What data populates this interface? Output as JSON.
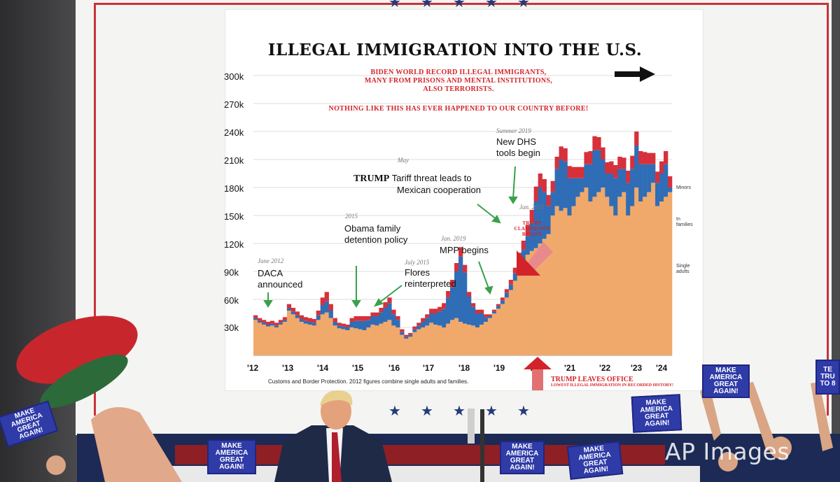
{
  "chart_data": {
    "type": "bar",
    "title": "ILLEGAL IMMIGRATION INTO THE U.S.",
    "xlabel": "",
    "ylabel": "",
    "ylim": [
      0,
      300000
    ],
    "y_ticks": [
      "30k",
      "60k",
      "90k",
      "120k",
      "150k",
      "180k",
      "210k",
      "240k",
      "270k",
      "300k"
    ],
    "x_ticks": [
      "'12",
      "'13",
      "'14",
      "'15",
      "'16",
      "'17",
      "'18",
      "'19",
      "'20",
      "'21",
      "'22",
      "'23",
      "'24"
    ],
    "grid": true,
    "stacked": true,
    "series_colors": {
      "single_adults": "#f0a96b",
      "in_families": "#2f6db6",
      "minors": "#d8303a"
    },
    "legend": [
      "Minors",
      "In families",
      "Single adults"
    ],
    "legend_placement": "right",
    "series": [
      {
        "name": "Single adults",
        "values": [
          38000,
          35000,
          33000,
          31000,
          32000,
          30000,
          33000,
          36000,
          48000,
          44000,
          40000,
          36000,
          34000,
          33000,
          32000,
          38000,
          44000,
          46000,
          40000,
          32000,
          29000,
          28000,
          27000,
          30000,
          29000,
          28000,
          27000,
          30000,
          33000,
          32000,
          34000,
          36000,
          38000,
          32000,
          30000,
          22000,
          18000,
          20000,
          25000,
          28000,
          30000,
          32000,
          35000,
          33000,
          32000,
          30000,
          34000,
          38000,
          40000,
          36000,
          34000,
          33000,
          32000,
          30000,
          33000,
          36000,
          40000,
          45000,
          50000,
          55000,
          62000,
          70000,
          80000,
          90000,
          98000,
          108000,
          112000,
          115000,
          120000,
          125000,
          130000,
          150000,
          160000,
          155000,
          158000,
          150000,
          160000,
          170000,
          175000,
          180000,
          165000,
          170000,
          175000,
          180000,
          170000,
          160000,
          150000,
          170000,
          175000,
          150000,
          160000,
          180000,
          165000,
          170000,
          175000,
          185000,
          160000,
          165000,
          170000,
          175000
        ]
      },
      {
        "name": "In families",
        "values": [
          2000,
          2000,
          2000,
          2000,
          2000,
          2000,
          2000,
          2000,
          3000,
          3000,
          3000,
          3000,
          3000,
          3000,
          3000,
          5000,
          10000,
          12000,
          8000,
          4000,
          3000,
          3000,
          3000,
          6000,
          8000,
          9000,
          10000,
          8000,
          9000,
          10000,
          12000,
          15000,
          18000,
          12000,
          8000,
          3000,
          2000,
          2000,
          3000,
          4000,
          6000,
          8000,
          10000,
          12000,
          15000,
          20000,
          28000,
          35000,
          50000,
          70000,
          55000,
          30000,
          20000,
          15000,
          12000,
          5000,
          2000,
          2000,
          3000,
          4000,
          5000,
          6000,
          8000,
          12000,
          15000,
          20000,
          30000,
          50000,
          60000,
          50000,
          30000,
          25000,
          40000,
          55000,
          50000,
          40000,
          30000,
          20000,
          15000,
          25000,
          40000,
          50000,
          45000,
          30000,
          25000,
          35000,
          40000,
          30000,
          25000,
          35000,
          40000,
          45000,
          40000,
          35000,
          30000,
          20000,
          25000,
          30000,
          35000,
          5000
        ]
      },
      {
        "name": "Minors",
        "values": [
          3000,
          3000,
          3000,
          3000,
          3000,
          3000,
          3000,
          3000,
          4000,
          4000,
          4000,
          4000,
          4000,
          4000,
          4000,
          5000,
          8000,
          10000,
          7000,
          4000,
          3000,
          3000,
          3000,
          4000,
          5000,
          5000,
          5000,
          4000,
          4000,
          4000,
          5000,
          6000,
          6000,
          5000,
          4000,
          3000,
          2000,
          2000,
          3000,
          3000,
          4000,
          4000,
          5000,
          5000,
          5000,
          6000,
          7000,
          8000,
          9000,
          10000,
          8000,
          5000,
          4000,
          4000,
          4000,
          3000,
          2000,
          2000,
          2000,
          3000,
          4000,
          5000,
          6000,
          8000,
          10000,
          12000,
          14000,
          16000,
          15000,
          14000,
          12000,
          12000,
          13000,
          14000,
          14000,
          13000,
          12000,
          12000,
          12000,
          13000,
          14000,
          15000,
          14000,
          13000,
          12000,
          13000,
          14000,
          13000,
          12000,
          13000,
          14000,
          15000,
          14000,
          13000,
          12000,
          12000,
          12000,
          13000,
          14000,
          12000
        ]
      }
    ],
    "annotations": {
      "subtitle_lines": [
        "BIDEN WORLD RECORD ILLEGAL IMMIGRANTS,",
        "MANY FROM PRISONS AND MENTAL INSTITUTIONS,",
        "ALSO TERRORISTS."
      ],
      "subtitle2": "NOTHING LIKE THIS HAS EVER HAPPENED TO OUR COUNTRY BEFORE!",
      "daca_date": "June 2012",
      "daca_lines": [
        "DACA",
        "announced"
      ],
      "obama_date": "2015",
      "obama_lines": [
        "Obama family",
        "detention policy"
      ],
      "flores_date": "July 2015",
      "flores_lines": [
        "Flores",
        "reinterpreted"
      ],
      "tariff_date": "May",
      "tariff_bold": "TRUMP",
      "tariff_rest": "Tariff threat leads to",
      "tariff_line2": "Mexican cooperation",
      "dhs_date": "Summer 2019",
      "dhs_lines": [
        "New DHS",
        "tools begin"
      ],
      "mpp_date": "Jan. 2019",
      "mpp_text": "MPP begins",
      "jan2021": "Jan. 2021",
      "clampdown_lines": [
        "TRUMP",
        "CLAMPDOWN",
        "BEGINS"
      ],
      "leaves_main": "TRUMP LEAVES OFFICE",
      "leaves_sub": "LOWEST ILLEGAL IMMIGRATION IN RECORDED HISTORY!",
      "source": "Customs and Border Protection. 2012 figures combine single adults and families."
    }
  },
  "signs": {
    "lines": [
      "MAKE",
      "AMERICA",
      "GREAT",
      "AGAIN!"
    ],
    "partial_right": [
      "TE",
      "TRU",
      "TO 8"
    ]
  },
  "watermark": "AP Images",
  "scene_colors": {
    "stage_blue": "#1c2a55",
    "stage_red": "#8e1f25",
    "sign_blue": "#2f3ba7",
    "frame_red": "#c8333a",
    "star_blue": "#253a7a"
  }
}
